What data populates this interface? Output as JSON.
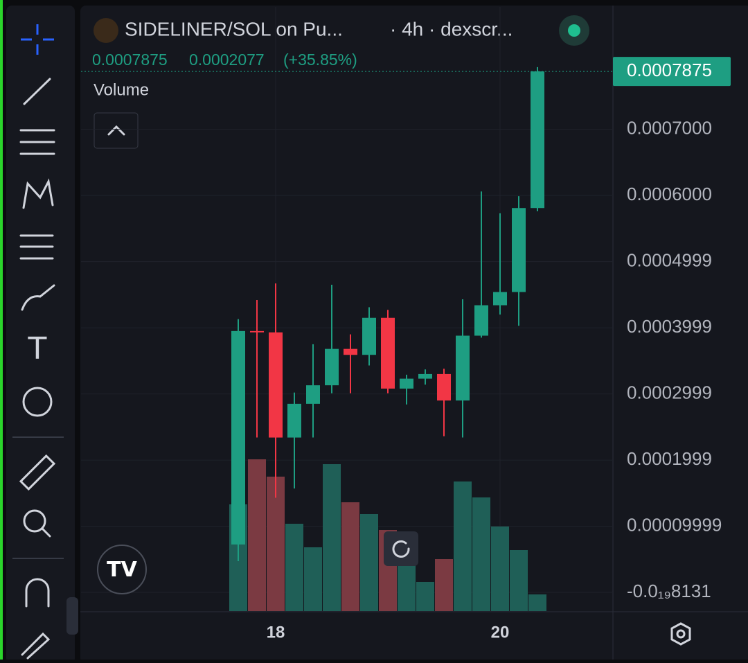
{
  "header": {
    "symbol": "SIDELINER/SOL on Pu...",
    "interval": "· 4h · dexscr...",
    "last": 0.0007875,
    "change": "0.0002077",
    "change_pct": "(+35.85%)",
    "study": "Volume"
  },
  "chart_data": {
    "type": "candlestick",
    "categories": [
      null,
      null,
      "18",
      null,
      null,
      null,
      null,
      null,
      null,
      null,
      null,
      null,
      null,
      null,
      "20",
      null,
      null
    ],
    "open": [
      7.23e-05,
      0.000395,
      0.000393,
      0.000234,
      0.000285,
      0.000313,
      0.000368,
      0.000359,
      0.000415,
      0.000308,
      0.000323,
      0.00033,
      0.00029,
      0.000388,
      0.000434,
      0.000454,
      0.000581
    ],
    "high": [
      0.000413,
      0.000442,
      0.000467,
      0.000302,
      0.000375,
      0.000465,
      0.00039,
      0.000431,
      0.000427,
      0.000329,
      0.000337,
      0.000338,
      0.000443,
      0.000606,
      0.000573,
      0.000599,
      0.000794
    ],
    "low": [
      4.71e-05,
      0.000234,
      0.000143,
      0.000157,
      0.000234,
      0.000301,
      0.000301,
      0.000343,
      0.000301,
      0.000284,
      0.000314,
      0.000236,
      0.000234,
      0.000385,
      0.00042,
      0.000403,
      0.000576
    ],
    "close": [
      0.000395,
      0.000393,
      0.000234,
      0.000285,
      0.000313,
      0.000368,
      0.000359,
      0.000415,
      0.000308,
      0.000323,
      0.00033,
      0.00029,
      0.000388,
      0.000434,
      0.000454,
      0.000581,
      0.0007875
    ],
    "volume": [
      154,
      219,
      194,
      126,
      92,
      212,
      157,
      140,
      117,
      77,
      42,
      75,
      187,
      164,
      122,
      88,
      24
    ],
    "vlim": [
      0,
      300
    ],
    "up_color": "#1e9e82",
    "down_color": "#f23645",
    "volume_up_color": "#1f5f57",
    "volume_down_color": "#7b3a42",
    "ylim": [
      -2.83e-05,
      0.000885
    ],
    "yticks": [
      {
        "value": 0.0007,
        "label": "0.0007000"
      },
      {
        "value": 0.0006,
        "label": "0.0006000"
      },
      0.0004999,
      0.0003999,
      0.0002999,
      0.0001999,
      9.999e-05,
      {
        "value": -8.131e-20,
        "label": "-0.0₁₉8131"
      }
    ],
    "grid": true
  }
}
